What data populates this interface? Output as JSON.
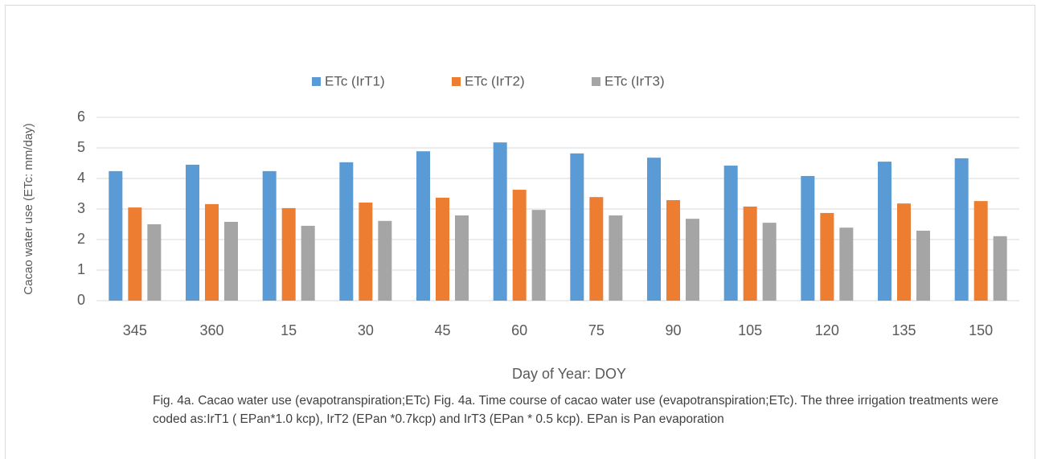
{
  "chart_data": {
    "type": "bar",
    "xlabel": "Day of Year: DOY",
    "ylabel": "Cacao water use (ETc: mm/day)",
    "caption": "Fig. 4a. Cacao water use (evapotranspiration;ETc) Fig. 4a. Time course of cacao water use (evapotranspiration;ETc). The three irrigation treatments were coded as:IrT1 ( EPan*1.0 kcp), IrT2 (EPan *0.7kcp) and IrT3 (EPan * 0.5 kcp). EPan is Pan evaporation",
    "categories": [
      "345",
      "360",
      "15",
      "30",
      "45",
      "60",
      "75",
      "90",
      "105",
      "120",
      "135",
      "150"
    ],
    "series": [
      {
        "name": "ETc (IrT1)",
        "color": "#5b9bd5",
        "values": [
          4.24,
          4.45,
          4.24,
          4.53,
          4.89,
          5.18,
          4.82,
          4.68,
          4.42,
          4.08,
          4.55,
          4.66
        ]
      },
      {
        "name": "ETc (IrT2)",
        "color": "#ed7d31",
        "values": [
          3.05,
          3.16,
          3.03,
          3.21,
          3.37,
          3.63,
          3.39,
          3.29,
          3.08,
          2.87,
          3.18,
          3.26
        ]
      },
      {
        "name": "ETc (IrT3)",
        "color": "#a5a5a5",
        "values": [
          2.5,
          2.58,
          2.45,
          2.61,
          2.79,
          2.97,
          2.79,
          2.68,
          2.55,
          2.39,
          2.29,
          2.11
        ]
      }
    ],
    "ylim": [
      0,
      6
    ],
    "yticks": [
      0,
      1,
      2,
      3,
      4,
      5,
      6
    ],
    "grid": true,
    "legend": "top"
  }
}
